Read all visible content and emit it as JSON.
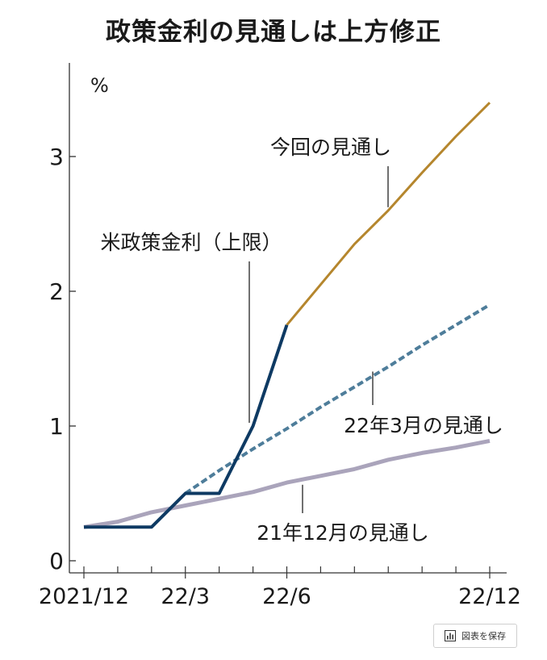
{
  "title": "政策金利の見通しは上方修正",
  "save_button_label": "図表を保存",
  "colors": {
    "policy_rate": "#0e3a63",
    "current_outlook": "#b5862d",
    "march_outlook": "#4e7d9a",
    "december_outlook": "#aaa4bb",
    "axis": "#333333"
  },
  "chart_data": {
    "type": "line",
    "title": "政策金利の見通しは上方修正",
    "ylabel": "%",
    "ylim": [
      0,
      3.6
    ],
    "yticks": [
      0,
      1,
      2,
      3
    ],
    "x_tick_labels": [
      {
        "x": 0,
        "label": "2021/12"
      },
      {
        "x": 3,
        "label": "22/3"
      },
      {
        "x": 6,
        "label": "22/6"
      },
      {
        "x": 12,
        "label": "22/12"
      }
    ],
    "x_minor_ticks": [
      0,
      1,
      2,
      3,
      4,
      5,
      6,
      7,
      8,
      9,
      10,
      11,
      12
    ],
    "series": [
      {
        "name": "米政策金利（上限）",
        "style": "solid",
        "color": "#0e3a63",
        "points": [
          [
            0,
            0.25
          ],
          [
            1,
            0.25
          ],
          [
            2,
            0.25
          ],
          [
            3,
            0.5
          ],
          [
            4,
            0.5
          ],
          [
            5,
            1.0
          ],
          [
            6,
            1.75
          ]
        ]
      },
      {
        "name": "今回の見通し",
        "style": "solid",
        "color": "#b5862d",
        "points": [
          [
            6,
            1.75
          ],
          [
            7,
            2.05
          ],
          [
            8,
            2.35
          ],
          [
            9,
            2.6
          ],
          [
            10,
            2.88
          ],
          [
            11,
            3.15
          ],
          [
            12,
            3.4
          ]
        ]
      },
      {
        "name": "22年3月の見通し",
        "style": "dashed",
        "color": "#4e7d9a",
        "points": [
          [
            3,
            0.5
          ],
          [
            4,
            0.67
          ],
          [
            5,
            0.83
          ],
          [
            6,
            0.98
          ],
          [
            7,
            1.14
          ],
          [
            8,
            1.29
          ],
          [
            9,
            1.44
          ],
          [
            10,
            1.6
          ],
          [
            11,
            1.75
          ],
          [
            12,
            1.9
          ]
        ]
      },
      {
        "name": "21年12月の見通し",
        "style": "solid",
        "color": "#aaa4bb",
        "points": [
          [
            0,
            0.25
          ],
          [
            1,
            0.29
          ],
          [
            2,
            0.36
          ],
          [
            3,
            0.41
          ],
          [
            4,
            0.46
          ],
          [
            5,
            0.51
          ],
          [
            6,
            0.58
          ],
          [
            7,
            0.63
          ],
          [
            8,
            0.68
          ],
          [
            9,
            0.75
          ],
          [
            10,
            0.8
          ],
          [
            11,
            0.84
          ],
          [
            12,
            0.89
          ]
        ]
      }
    ],
    "annotations": [
      {
        "series": "今回の見通し",
        "text": "今回の見通し",
        "anchor": [
          9,
          2.6
        ]
      },
      {
        "series": "米政策金利（上限）",
        "text": "米政策金利（上限）",
        "anchor": [
          5,
          1.0
        ]
      },
      {
        "series": "22年3月の見通し",
        "text": "22年3月の見通し",
        "anchor": [
          9,
          1.44
        ]
      },
      {
        "series": "21年12月の見通し",
        "text": "21年12月の見通し",
        "anchor": [
          6.5,
          0.6
        ]
      }
    ]
  }
}
